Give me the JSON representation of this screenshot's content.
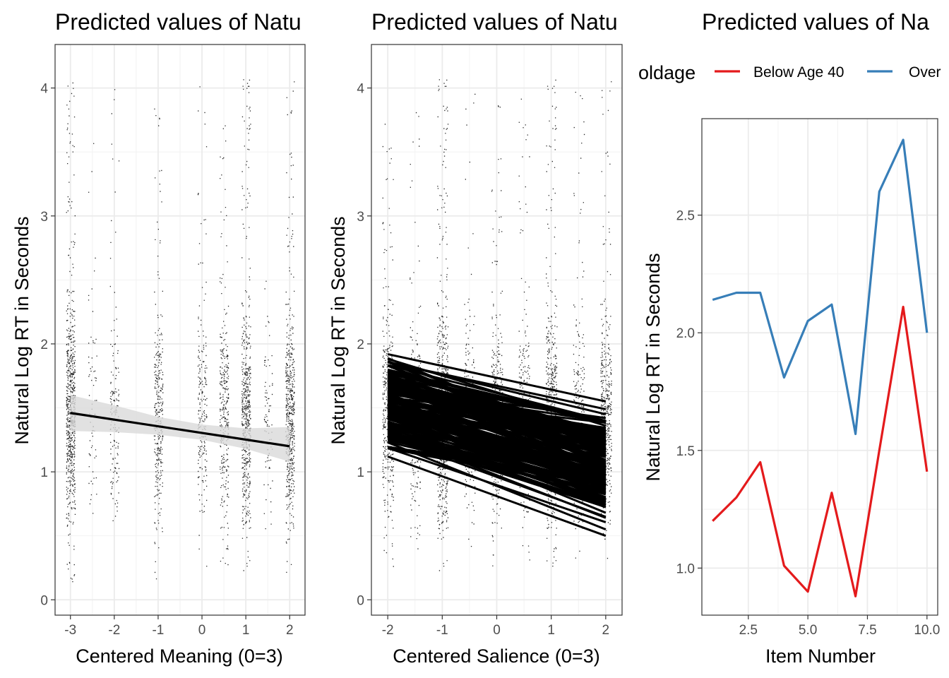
{
  "chart_data": [
    {
      "type": "scatter",
      "title": "Predicted values of Natu",
      "xlabel": "Centered Meaning (0=3)",
      "ylabel": "Natural Log RT in Seconds",
      "xlim": [
        -3.35,
        2.35
      ],
      "ylim": [
        -0.12,
        4.34
      ],
      "x_ticks": [
        -3,
        -2,
        -1,
        0,
        1,
        2
      ],
      "x_tick_labels": [
        "-3",
        "-2",
        "-1",
        "0",
        "1",
        "2"
      ],
      "y_ticks": [
        0,
        1,
        2,
        3,
        4
      ],
      "y_tick_labels": [
        "0",
        "1",
        "2",
        "3",
        "4"
      ],
      "grid": true,
      "point_columns": [
        {
          "x": -3.0,
          "density": 1.0,
          "y_min": 0.1,
          "y_max": 4.1
        },
        {
          "x": -2.5,
          "density": 0.1,
          "y_min": 0.25,
          "y_max": 4.1
        },
        {
          "x": -2.0,
          "density": 0.22,
          "y_min": 0.25,
          "y_max": 4.1
        },
        {
          "x": -1.0,
          "density": 0.45,
          "y_min": 0.15,
          "y_max": 4.05
        },
        {
          "x": 0.0,
          "density": 0.3,
          "y_min": 0.25,
          "y_max": 4.1
        },
        {
          "x": 0.5,
          "density": 0.45,
          "y_min": 0.2,
          "y_max": 4.0
        },
        {
          "x": 1.0,
          "density": 0.8,
          "y_min": 0.2,
          "y_max": 4.1
        },
        {
          "x": 1.5,
          "density": 0.12,
          "y_min": 0.3,
          "y_max": 2.5
        },
        {
          "x": 2.0,
          "density": 0.75,
          "y_min": 0.15,
          "y_max": 4.1
        }
      ],
      "fit_line": {
        "x": [
          -3,
          2
        ],
        "y": [
          1.46,
          1.2
        ]
      },
      "ribbon": {
        "x": [
          -3,
          -2,
          -1,
          0,
          1,
          2
        ],
        "lower": [
          1.32,
          1.31,
          1.29,
          1.25,
          1.18,
          1.08
        ],
        "upper": [
          1.6,
          1.52,
          1.43,
          1.37,
          1.34,
          1.35
        ]
      },
      "colors": {
        "points": "#000000",
        "line": "#000000",
        "ribbon": "#d9d9d9",
        "grid": "#ebebeb"
      }
    },
    {
      "type": "scatter",
      "title": "Predicted values of Natu",
      "xlabel": "Centered Salience (0=3)",
      "ylabel": "Natural Log RT in Seconds",
      "xlim": [
        -2.3,
        2.3
      ],
      "ylim": [
        -0.12,
        4.34
      ],
      "x_ticks": [
        -2,
        -1,
        0,
        1,
        2
      ],
      "x_tick_labels": [
        "-2",
        "-1",
        "0",
        "1",
        "2"
      ],
      "y_ticks": [
        0,
        1,
        2,
        3,
        4
      ],
      "y_tick_labels": [
        "0",
        "1",
        "2",
        "3",
        "4"
      ],
      "grid": true,
      "point_columns": [
        {
          "x": -2.0,
          "density": 0.55,
          "y_min": 0.25,
          "y_max": 3.8
        },
        {
          "x": -1.5,
          "density": 0.3,
          "y_min": 0.4,
          "y_max": 3.9
        },
        {
          "x": -1.0,
          "density": 1.0,
          "y_min": 0.2,
          "y_max": 4.1
        },
        {
          "x": -0.5,
          "density": 0.3,
          "y_min": 0.3,
          "y_max": 4.0
        },
        {
          "x": 0.0,
          "density": 0.45,
          "y_min": 0.2,
          "y_max": 4.15
        },
        {
          "x": 0.5,
          "density": 0.3,
          "y_min": 0.3,
          "y_max": 4.0
        },
        {
          "x": 1.0,
          "density": 0.8,
          "y_min": 0.2,
          "y_max": 4.1
        },
        {
          "x": 1.5,
          "density": 0.3,
          "y_min": 0.3,
          "y_max": 4.0
        },
        {
          "x": 2.0,
          "density": 0.6,
          "y_min": 0.2,
          "y_max": 4.1
        }
      ],
      "line_bundle": {
        "x": [
          -2,
          2
        ],
        "count": 160,
        "left_range": [
          1.12,
          1.92
        ],
        "right_range": [
          0.5,
          1.55
        ]
      },
      "colors": {
        "points": "#000000",
        "line": "#000000",
        "grid": "#ebebeb"
      }
    },
    {
      "type": "line",
      "title": "Predicted values of Na",
      "xlabel": "Item Number",
      "ylabel": "Natural Log RT in Seconds",
      "xlim": [
        0.55,
        10.45
      ],
      "ylim": [
        0.8,
        2.91
      ],
      "x_ticks": [
        2.5,
        5.0,
        7.5,
        10.0
      ],
      "x_tick_labels": [
        "2.5",
        "5.0",
        "7.5",
        "10.0"
      ],
      "y_ticks": [
        1.0,
        1.5,
        2.0,
        2.5
      ],
      "y_tick_labels": [
        "1.0",
        "1.5",
        "2.0",
        "2.5"
      ],
      "grid": true,
      "legend": {
        "title": "oldage",
        "position": "top"
      },
      "x": [
        1,
        2,
        3,
        4,
        5,
        6,
        7,
        8,
        9,
        10
      ],
      "series": [
        {
          "name": "Below Age 40",
          "color": "#e41a1c",
          "values": [
            1.2,
            1.3,
            1.45,
            1.01,
            0.9,
            1.32,
            0.88,
            1.5,
            2.11,
            1.41
          ]
        },
        {
          "name": "Over",
          "color": "#377eb8",
          "values": [
            2.14,
            2.17,
            2.17,
            1.81,
            2.05,
            2.12,
            1.57,
            2.6,
            2.82,
            2.0
          ]
        }
      ],
      "colors": {
        "grid": "#ebebeb"
      }
    }
  ]
}
